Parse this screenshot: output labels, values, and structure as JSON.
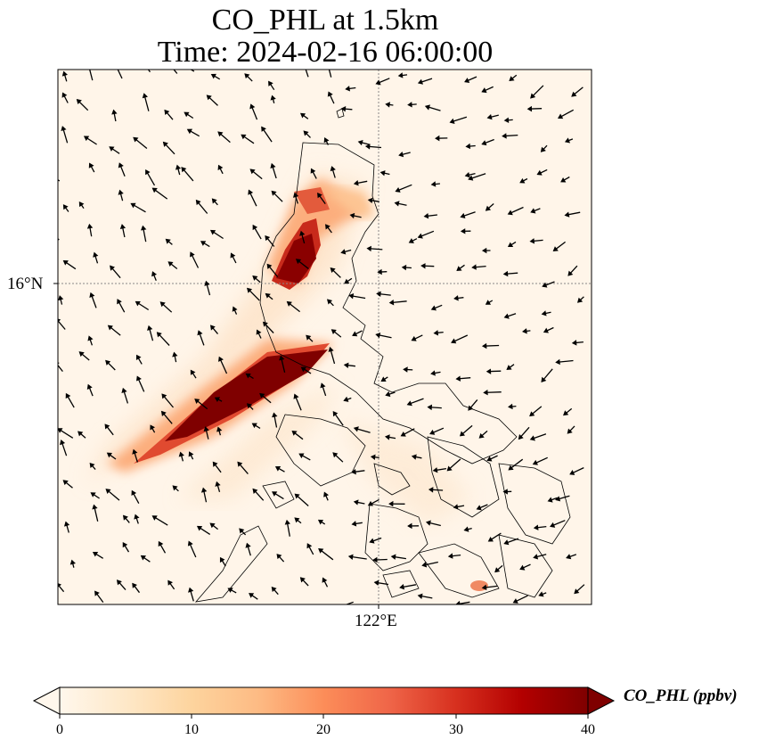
{
  "title": {
    "line1": "CO_PHL at 1.5km",
    "line2": "Time: 2024-02-16 06:00:00"
  },
  "axes": {
    "lat_label": "16°N",
    "lon_label": "122°E"
  },
  "colorbar": {
    "label": "CO_PHL (ppbv)",
    "ticks": [
      "0",
      "10",
      "20",
      "30",
      "40"
    ],
    "range": [
      0,
      40
    ],
    "colormap": "OrRd",
    "colors": [
      "#fff7ec",
      "#fee8c8",
      "#fdd49e",
      "#fdbb84",
      "#fc8d59",
      "#ef6548",
      "#d7301f",
      "#b30000",
      "#7f0000"
    ]
  },
  "map": {
    "gridline_color": "#888888",
    "coastline_color": "#000000",
    "background": "#fff5e9"
  }
}
